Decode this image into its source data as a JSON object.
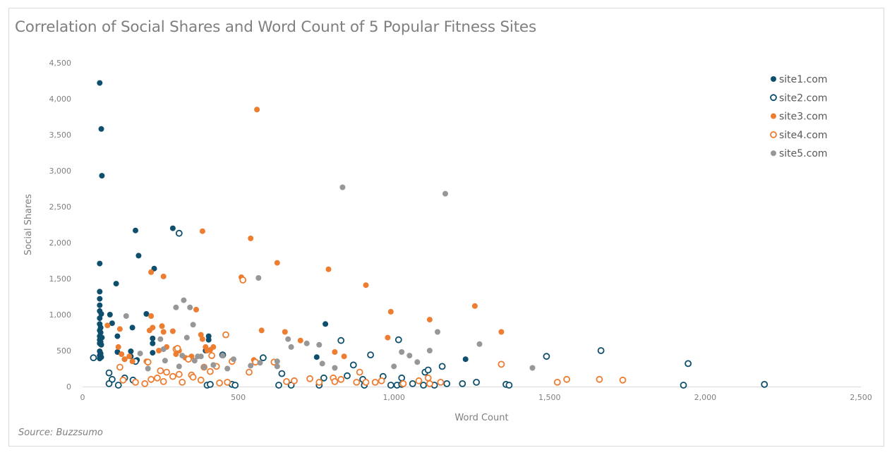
{
  "source": "Source: Buzzsumo",
  "colors": {
    "navy": "#0d4f6c",
    "orange": "#ed7d31",
    "gray": "#979797",
    "axis_text": "#7f7f7f",
    "axis_line": "#d9d9d9"
  },
  "chart_data": {
    "type": "scatter",
    "title": "Correlation of Social Shares and Word Count of 5 Popular Fitness Sites",
    "xlabel": "Word Count",
    "ylabel": "Social Shares",
    "xlim": [
      0,
      2500
    ],
    "ylim": [
      0,
      4500
    ],
    "x_ticks": [
      0,
      500,
      1000,
      1500,
      2000,
      2500
    ],
    "x_tick_labels": [
      "0",
      "500",
      "1,000",
      "1,500",
      "2,000",
      "2,500"
    ],
    "y_ticks": [
      0,
      500,
      1000,
      1500,
      2000,
      2500,
      3000,
      3500,
      4000,
      4500
    ],
    "y_tick_labels": [
      "0",
      "500",
      "1,000",
      "1,500",
      "2,000",
      "2,500",
      "3,000",
      "3,500",
      "4,000",
      "4,500"
    ],
    "grid": false,
    "legend_position": "top-right",
    "series": [
      {
        "name": "site1.com",
        "color": "#0d4f6c",
        "filled": true,
        "points": [
          [
            55,
            4220
          ],
          [
            60,
            3580
          ],
          [
            62,
            2930
          ],
          [
            55,
            1710
          ],
          [
            55,
            1320
          ],
          [
            55,
            1220
          ],
          [
            55,
            1130
          ],
          [
            55,
            1050
          ],
          [
            60,
            1010
          ],
          [
            55,
            950
          ],
          [
            55,
            870
          ],
          [
            58,
            820
          ],
          [
            55,
            780
          ],
          [
            58,
            750
          ],
          [
            55,
            700
          ],
          [
            62,
            680
          ],
          [
            55,
            650
          ],
          [
            58,
            620
          ],
          [
            55,
            600
          ],
          [
            60,
            580
          ],
          [
            55,
            490
          ],
          [
            58,
            460
          ],
          [
            55,
            430
          ],
          [
            60,
            410
          ],
          [
            55,
            390
          ],
          [
            108,
            1430
          ],
          [
            88,
            1000
          ],
          [
            95,
            880
          ],
          [
            160,
            820
          ],
          [
            112,
            700
          ],
          [
            112,
            480
          ],
          [
            155,
            490
          ],
          [
            155,
            420
          ],
          [
            135,
            380
          ],
          [
            175,
            370
          ],
          [
            170,
            2170
          ],
          [
            180,
            1820
          ],
          [
            205,
            1010
          ],
          [
            230,
            1640
          ],
          [
            225,
            670
          ],
          [
            225,
            600
          ],
          [
            225,
            470
          ],
          [
            290,
            2200
          ],
          [
            405,
            700
          ],
          [
            405,
            650
          ],
          [
            395,
            500
          ],
          [
            780,
            870
          ],
          [
            752,
            410
          ],
          [
            1230,
            380
          ]
        ]
      },
      {
        "name": "site2.com",
        "color": "#0d4f6c",
        "filled": false,
        "points": [
          [
            35,
            400
          ],
          [
            85,
            190
          ],
          [
            95,
            100
          ],
          [
            85,
            40
          ],
          [
            115,
            20
          ],
          [
            135,
            120
          ],
          [
            162,
            90
          ],
          [
            170,
            350
          ],
          [
            310,
            2130
          ],
          [
            400,
            20
          ],
          [
            410,
            30
          ],
          [
            450,
            440
          ],
          [
            480,
            30
          ],
          [
            490,
            20
          ],
          [
            580,
            400
          ],
          [
            630,
            20
          ],
          [
            640,
            180
          ],
          [
            670,
            20
          ],
          [
            760,
            20
          ],
          [
            775,
            120
          ],
          [
            830,
            640
          ],
          [
            850,
            150
          ],
          [
            870,
            300
          ],
          [
            900,
            100
          ],
          [
            905,
            20
          ],
          [
            925,
            440
          ],
          [
            965,
            140
          ],
          [
            990,
            20
          ],
          [
            1010,
            20
          ],
          [
            1015,
            650
          ],
          [
            1025,
            30
          ],
          [
            1025,
            120
          ],
          [
            1060,
            40
          ],
          [
            1095,
            20
          ],
          [
            1100,
            200
          ],
          [
            1110,
            230
          ],
          [
            1130,
            20
          ],
          [
            1155,
            280
          ],
          [
            1170,
            40
          ],
          [
            1220,
            40
          ],
          [
            1265,
            60
          ],
          [
            1360,
            30
          ],
          [
            1370,
            20
          ],
          [
            1490,
            420
          ],
          [
            1665,
            500
          ],
          [
            1930,
            20
          ],
          [
            1945,
            320
          ],
          [
            2190,
            30
          ]
        ]
      },
      {
        "name": "site3.com",
        "color": "#ed7d31",
        "filled": true,
        "points": [
          [
            80,
            850
          ],
          [
            115,
            550
          ],
          [
            120,
            800
          ],
          [
            125,
            450
          ],
          [
            135,
            380
          ],
          [
            150,
            420
          ],
          [
            160,
            350
          ],
          [
            205,
            350
          ],
          [
            215,
            780
          ],
          [
            225,
            820
          ],
          [
            220,
            980
          ],
          [
            220,
            1590
          ],
          [
            260,
            1530
          ],
          [
            245,
            500
          ],
          [
            255,
            840
          ],
          [
            260,
            760
          ],
          [
            270,
            550
          ],
          [
            290,
            770
          ],
          [
            300,
            450
          ],
          [
            310,
            500
          ],
          [
            330,
            400
          ],
          [
            350,
            420
          ],
          [
            365,
            1070
          ],
          [
            380,
            720
          ],
          [
            385,
            2160
          ],
          [
            385,
            660
          ],
          [
            395,
            550
          ],
          [
            400,
            500
          ],
          [
            410,
            510
          ],
          [
            420,
            550
          ],
          [
            510,
            1520
          ],
          [
            540,
            2060
          ],
          [
            550,
            370
          ],
          [
            560,
            3850
          ],
          [
            575,
            780
          ],
          [
            625,
            1720
          ],
          [
            650,
            760
          ],
          [
            700,
            640
          ],
          [
            790,
            1630
          ],
          [
            810,
            480
          ],
          [
            840,
            420
          ],
          [
            910,
            1410
          ],
          [
            980,
            680
          ],
          [
            990,
            1040
          ],
          [
            1115,
            930
          ],
          [
            1260,
            1120
          ],
          [
            1345,
            760
          ]
        ]
      },
      {
        "name": "site4.com",
        "color": "#ed7d31",
        "filled": false,
        "points": [
          [
            120,
            270
          ],
          [
            130,
            90
          ],
          [
            170,
            60
          ],
          [
            200,
            40
          ],
          [
            210,
            340
          ],
          [
            220,
            100
          ],
          [
            240,
            120
          ],
          [
            250,
            220
          ],
          [
            260,
            70
          ],
          [
            270,
            200
          ],
          [
            290,
            140
          ],
          [
            300,
            520
          ],
          [
            305,
            530
          ],
          [
            310,
            170
          ],
          [
            320,
            60
          ],
          [
            340,
            380
          ],
          [
            350,
            160
          ],
          [
            355,
            130
          ],
          [
            380,
            90
          ],
          [
            390,
            270
          ],
          [
            410,
            210
          ],
          [
            415,
            430
          ],
          [
            430,
            280
          ],
          [
            440,
            50
          ],
          [
            460,
            720
          ],
          [
            465,
            60
          ],
          [
            480,
            350
          ],
          [
            515,
            1480
          ],
          [
            535,
            200
          ],
          [
            555,
            340
          ],
          [
            615,
            340
          ],
          [
            655,
            70
          ],
          [
            680,
            80
          ],
          [
            730,
            110
          ],
          [
            760,
            60
          ],
          [
            805,
            120
          ],
          [
            810,
            70
          ],
          [
            830,
            100
          ],
          [
            880,
            60
          ],
          [
            890,
            200
          ],
          [
            910,
            60
          ],
          [
            940,
            60
          ],
          [
            960,
            80
          ],
          [
            1030,
            40
          ],
          [
            1080,
            80
          ],
          [
            1110,
            120
          ],
          [
            1115,
            40
          ],
          [
            1150,
            60
          ],
          [
            1345,
            310
          ],
          [
            1525,
            60
          ],
          [
            1555,
            100
          ],
          [
            1660,
            100
          ],
          [
            1735,
            90
          ]
        ]
      },
      {
        "name": "site5.com",
        "color": "#979797",
        "filled": true,
        "points": [
          [
            140,
            980
          ],
          [
            185,
            460
          ],
          [
            210,
            250
          ],
          [
            250,
            660
          ],
          [
            260,
            520
          ],
          [
            265,
            360
          ],
          [
            300,
            1100
          ],
          [
            310,
            280
          ],
          [
            320,
            430
          ],
          [
            325,
            1200
          ],
          [
            335,
            680
          ],
          [
            345,
            1100
          ],
          [
            355,
            860
          ],
          [
            360,
            360
          ],
          [
            370,
            420
          ],
          [
            380,
            420
          ],
          [
            390,
            270
          ],
          [
            420,
            300
          ],
          [
            450,
            430
          ],
          [
            465,
            250
          ],
          [
            485,
            380
          ],
          [
            540,
            290
          ],
          [
            565,
            1510
          ],
          [
            570,
            330
          ],
          [
            625,
            280
          ],
          [
            625,
            350
          ],
          [
            660,
            660
          ],
          [
            670,
            550
          ],
          [
            720,
            600
          ],
          [
            760,
            580
          ],
          [
            770,
            320
          ],
          [
            810,
            260
          ],
          [
            835,
            2770
          ],
          [
            1000,
            280
          ],
          [
            1025,
            480
          ],
          [
            1050,
            430
          ],
          [
            1075,
            340
          ],
          [
            1115,
            500
          ],
          [
            1140,
            760
          ],
          [
            1165,
            2680
          ],
          [
            1275,
            590
          ],
          [
            1445,
            260
          ]
        ]
      }
    ]
  }
}
